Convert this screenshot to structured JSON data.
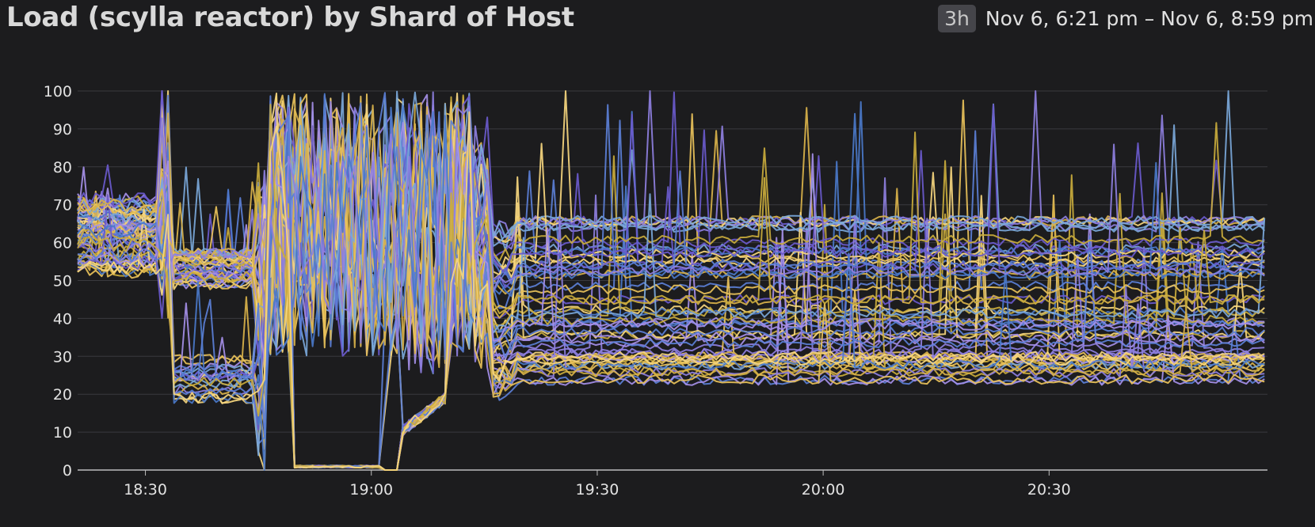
{
  "widget": {
    "title": "Load (scylla reactor) by Shard of Host",
    "timeframe_badge": "3h",
    "timeframe_range": "Nov 6, 6:21 pm – Nov 6, 8:59 pm"
  },
  "chart_data": {
    "type": "line",
    "title": "Load (scylla reactor) by Shard of Host",
    "xlabel": "",
    "ylabel": "",
    "x_range_minutes": [
      1101,
      1259
    ],
    "ylim": [
      0,
      100
    ],
    "y_ticks": [
      0,
      10,
      20,
      30,
      40,
      50,
      60,
      70,
      80,
      90,
      100
    ],
    "x_ticks": [
      {
        "label": "18:30",
        "minute": 1110
      },
      {
        "label": "19:00",
        "minute": 1140
      },
      {
        "label": "19:30",
        "minute": 1170
      },
      {
        "label": "20:00",
        "minute": 1200
      },
      {
        "label": "20:30",
        "minute": 1230
      }
    ],
    "grid": true,
    "legend": "none",
    "palette": [
      "#5b7fd6",
      "#8e7fe0",
      "#c9ab3c",
      "#f6d67e",
      "#79a7d9",
      "#6a5acd",
      "#e8c15a",
      "#a58fe8",
      "#4a78c9",
      "#d9b24a"
    ],
    "series_note_count": 64,
    "series_groups": [
      {
        "phase": "18:21-18:41",
        "levels": [
          54,
          56,
          58,
          60,
          62,
          64,
          66,
          68,
          70
        ]
      },
      {
        "phase": "18:41-18:54",
        "levels": [
          19,
          21,
          23,
          25,
          27,
          29,
          49,
          51,
          53,
          55,
          57
        ]
      },
      {
        "phase": "18:54-19:01",
        "levels": [
          0,
          1
        ]
      },
      {
        "phase": "19:01-19:43",
        "levels": [
          30,
          50,
          70,
          90,
          100
        ]
      },
      {
        "phase": "19:43-20:59",
        "levels": [
          24,
          26,
          28,
          30,
          33,
          36,
          39,
          42,
          45,
          48,
          52,
          54,
          56,
          58,
          60,
          65,
          68
        ]
      }
    ]
  }
}
